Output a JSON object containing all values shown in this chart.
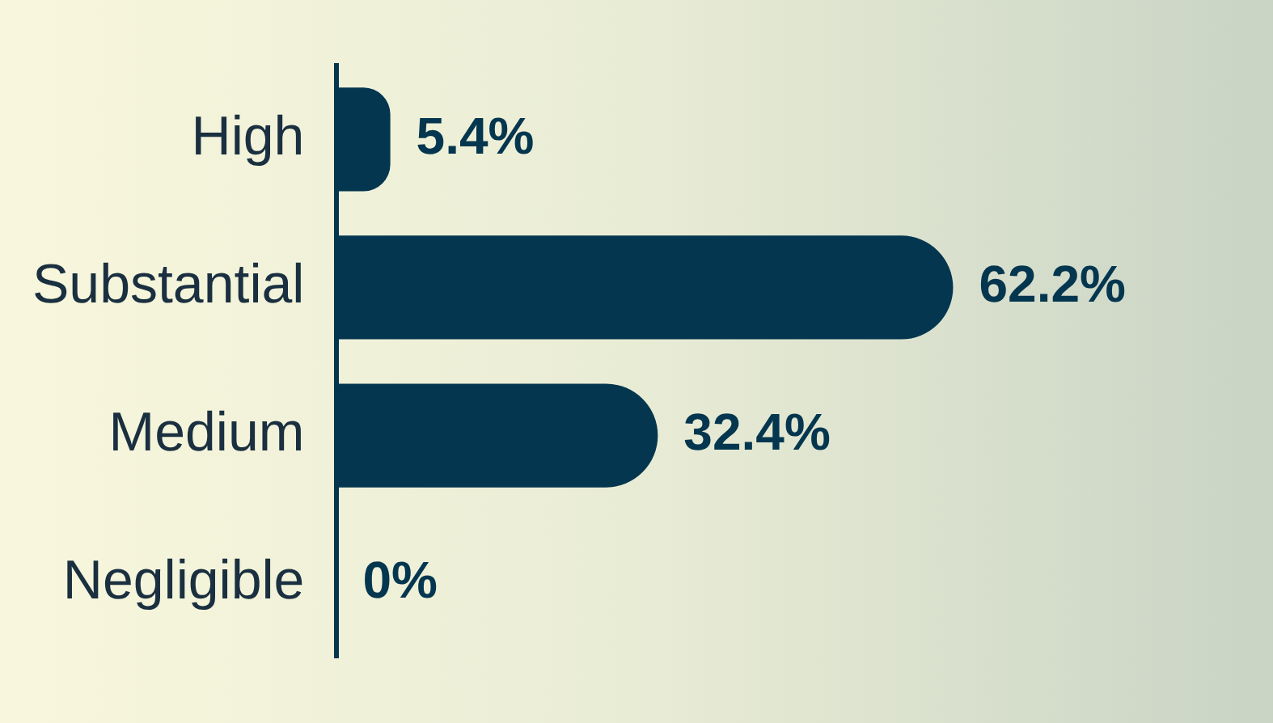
{
  "chart_data": {
    "type": "bar",
    "orientation": "horizontal",
    "categories": [
      "High",
      "Substantial",
      "Medium",
      "Negligible"
    ],
    "values": [
      5.4,
      62.2,
      32.4,
      0
    ],
    "color": "#04364f",
    "value_labels": [
      "5.4%",
      "62.2%",
      "32.4%",
      "0%"
    ],
    "grid": false,
    "legend": false
  }
}
